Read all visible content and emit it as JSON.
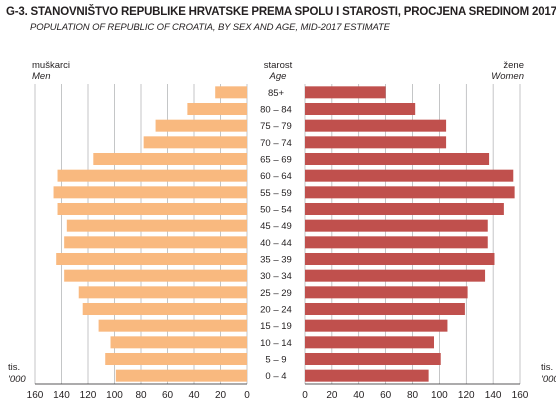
{
  "title": "G-3. STANOVNIŠTVO REPUBLIKE HRVATSKE PREMA SPOLU I STAROSTI, PROCJENA SREDINOM 2017.",
  "subtitle": "POPULATION OF REPUBLIC OF CROATIA, BY SEX AND AGE, MID-2017 ESTIMATE",
  "left_label": "muškarci",
  "left_label_en": "Men",
  "center_label": "starost",
  "center_label_en": "Age",
  "right_label": "žene",
  "right_label_en": "Women",
  "unit_label": "tis.",
  "unit_label_en": "'000",
  "colors": {
    "men": "#f9b97f",
    "women": "#c0504d",
    "grid": "#9d9fa2"
  },
  "chart_data": {
    "type": "bar",
    "orientation": "horizontal-pyramid",
    "categories": [
      "85+",
      "80 – 84",
      "75 – 79",
      "70 – 74",
      "65 – 69",
      "60 – 64",
      "55 – 59",
      "50 – 54",
      "45 – 49",
      "40 – 44",
      "35 – 39",
      "30 – 34",
      "25 – 29",
      "20 – 24",
      "15 – 19",
      "10 – 14",
      "5 – 9",
      "0 – 4"
    ],
    "series": [
      {
        "name": "Men",
        "values": [
          24,
          45,
          69,
          78,
          116,
          143,
          146,
          143,
          136,
          138,
          144,
          138,
          127,
          124,
          112,
          103,
          107,
          99
        ]
      },
      {
        "name": "Women",
        "values": [
          60,
          82,
          105,
          105,
          137,
          155,
          156,
          148,
          136,
          136,
          141,
          134,
          121,
          119,
          106,
          96,
          101,
          92
        ]
      }
    ],
    "xlim": [
      0,
      160
    ],
    "ticks": [
      160,
      140,
      120,
      100,
      80,
      60,
      40,
      20,
      0
    ],
    "ticks_right": [
      0,
      20,
      40,
      60,
      80,
      100,
      120,
      140,
      160
    ],
    "grid": true
  }
}
